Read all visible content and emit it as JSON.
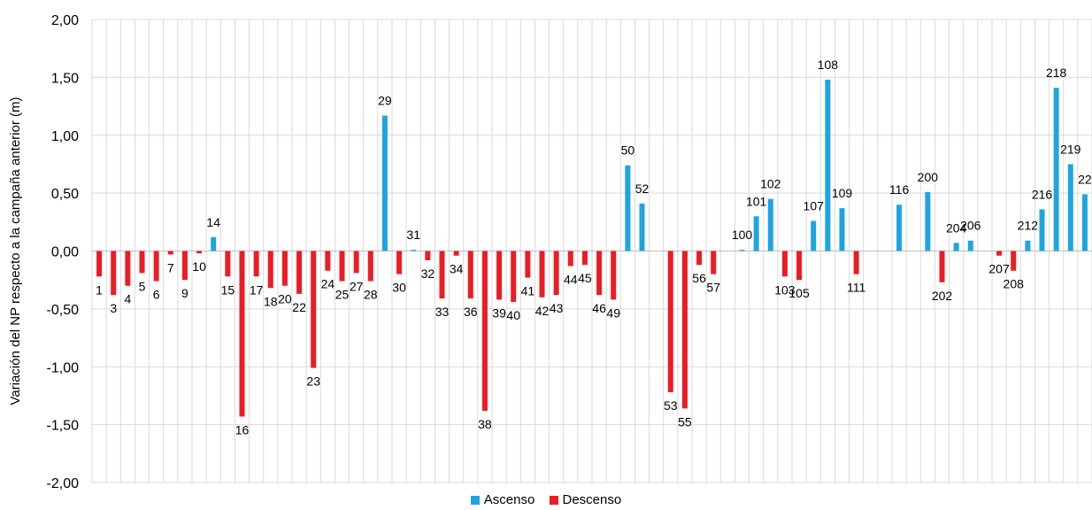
{
  "chart_data": {
    "type": "bar",
    "title": "",
    "xlabel": "",
    "ylabel": "Variación del NP respecto a la campaña anterior (m)",
    "ylim": [
      -2,
      2
    ],
    "yticks": [
      "2,00",
      "1,50",
      "1,00",
      "0,50",
      "0,00",
      "-0,50",
      "-1,00",
      "-1,50",
      "-2,00"
    ],
    "grid": true,
    "legend_position": "bottom",
    "series": [
      {
        "name": "Ascenso",
        "color": "#1ea5e0"
      },
      {
        "name": "Descenso",
        "color": "#ec1c24"
      }
    ],
    "bars": [
      {
        "label": "1",
        "value": -0.22
      },
      {
        "label": "3",
        "value": -0.38
      },
      {
        "label": "4",
        "value": -0.3
      },
      {
        "label": "5",
        "value": -0.19
      },
      {
        "label": "6",
        "value": -0.26
      },
      {
        "label": "7",
        "value": -0.03
      },
      {
        "label": "9",
        "value": -0.25
      },
      {
        "label": "10",
        "value": -0.02
      },
      {
        "label": "14",
        "value": 0.12
      },
      {
        "label": "15",
        "value": -0.22
      },
      {
        "label": "16",
        "value": -1.43
      },
      {
        "label": "17",
        "value": -0.22
      },
      {
        "label": "18",
        "value": -0.32
      },
      {
        "label": "20",
        "value": -0.3
      },
      {
        "label": "22",
        "value": -0.37
      },
      {
        "label": "23",
        "value": -1.01
      },
      {
        "label": "24",
        "value": -0.17
      },
      {
        "label": "25",
        "value": -0.26
      },
      {
        "label": "27",
        "value": -0.19
      },
      {
        "label": "28",
        "value": -0.26
      },
      {
        "label": "29",
        "value": 1.17
      },
      {
        "label": "30",
        "value": -0.2
      },
      {
        "label": "31",
        "value": 0.01
      },
      {
        "label": "32",
        "value": -0.08
      },
      {
        "label": "33",
        "value": -0.41
      },
      {
        "label": "34",
        "value": -0.04
      },
      {
        "label": "36",
        "value": -0.41
      },
      {
        "label": "38",
        "value": -1.38
      },
      {
        "label": "39",
        "value": -0.42
      },
      {
        "label": "40",
        "value": -0.44
      },
      {
        "label": "41",
        "value": -0.23
      },
      {
        "label": "42",
        "value": -0.4
      },
      {
        "label": "43",
        "value": -0.38
      },
      {
        "label": "44",
        "value": -0.13
      },
      {
        "label": "45",
        "value": -0.12
      },
      {
        "label": "46",
        "value": -0.38
      },
      {
        "label": "49",
        "value": -0.42
      },
      {
        "label": "50",
        "value": 0.74
      },
      {
        "label": "52",
        "value": 0.41
      },
      {
        "label": "",
        "value": null
      },
      {
        "label": "53",
        "value": -1.22
      },
      {
        "label": "55",
        "value": -1.36
      },
      {
        "label": "56",
        "value": -0.12
      },
      {
        "label": "57",
        "value": -0.2
      },
      {
        "label": "",
        "value": null
      },
      {
        "label": "100",
        "value": 0.01
      },
      {
        "label": "101",
        "value": 0.3
      },
      {
        "label": "102",
        "value": 0.45
      },
      {
        "label": "103",
        "value": -0.22
      },
      {
        "label": "105",
        "value": -0.25
      },
      {
        "label": "107",
        "value": 0.26
      },
      {
        "label": "108",
        "value": 1.48
      },
      {
        "label": "109",
        "value": 0.37
      },
      {
        "label": "111",
        "value": -0.2
      },
      {
        "label": "",
        "value": null
      },
      {
        "label": "",
        "value": null
      },
      {
        "label": "116",
        "value": 0.4
      },
      {
        "label": "",
        "value": null
      },
      {
        "label": "200",
        "value": 0.51
      },
      {
        "label": "202",
        "value": -0.27
      },
      {
        "label": "204",
        "value": 0.07
      },
      {
        "label": "206",
        "value": 0.09
      },
      {
        "label": "",
        "value": null
      },
      {
        "label": "207",
        "value": -0.04
      },
      {
        "label": "208",
        "value": -0.17
      },
      {
        "label": "212",
        "value": 0.09
      },
      {
        "label": "216",
        "value": 0.36
      },
      {
        "label": "218",
        "value": 1.41
      },
      {
        "label": "219",
        "value": 0.75
      },
      {
        "label": "22",
        "value": 0.49
      }
    ]
  }
}
